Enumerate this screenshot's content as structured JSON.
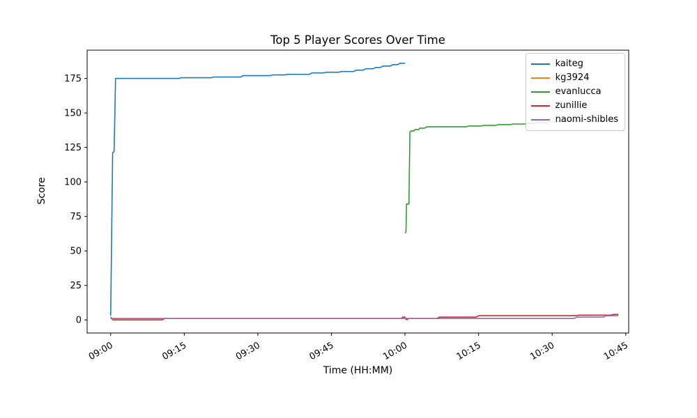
{
  "figure": {
    "title": "Top 5 Player Scores Over Time",
    "xlabel": "Time (HH:MM)",
    "ylabel": "Score"
  },
  "chart_data": {
    "type": "line",
    "title": "Top 5 Player Scores Over Time",
    "xlabel": "Time (HH:MM)",
    "ylabel": "Score",
    "grid": false,
    "legend_position": "upper right",
    "x_unit": "minutes after 09:00",
    "xlim": [
      -4.8,
      105.6
    ],
    "ylim": [
      -9.5,
      195.5
    ],
    "x_ticks": [
      {
        "minute": 0,
        "label": "09:00"
      },
      {
        "minute": 15,
        "label": "09:15"
      },
      {
        "minute": 30,
        "label": "09:30"
      },
      {
        "minute": 45,
        "label": "09:45"
      },
      {
        "minute": 60,
        "label": "10:00"
      },
      {
        "minute": 75,
        "label": "10:15"
      },
      {
        "minute": 90,
        "label": "10:30"
      },
      {
        "minute": 105,
        "label": "10:45"
      }
    ],
    "y_ticks": [
      0,
      25,
      50,
      75,
      100,
      125,
      150,
      175
    ],
    "series": [
      {
        "name": "kaiteg",
        "color": "#1f77b4",
        "points": [
          [
            0,
            3
          ],
          [
            0.4,
            121
          ],
          [
            0.7,
            122
          ],
          [
            1.0,
            175
          ],
          [
            14,
            175
          ],
          [
            14.3,
            175.5
          ],
          [
            20.5,
            175.5
          ],
          [
            21,
            176
          ],
          [
            26.5,
            176
          ],
          [
            27,
            177
          ],
          [
            32.5,
            177
          ],
          [
            33,
            177.5
          ],
          [
            35.5,
            177.5
          ],
          [
            36,
            178
          ],
          [
            40.5,
            178
          ],
          [
            41,
            179
          ],
          [
            43.5,
            179
          ],
          [
            44,
            179.5
          ],
          [
            46.5,
            179.5
          ],
          [
            47,
            180
          ],
          [
            49.5,
            180
          ],
          [
            50,
            181
          ],
          [
            51.5,
            181
          ],
          [
            52,
            182
          ],
          [
            53.5,
            182
          ],
          [
            54,
            183
          ],
          [
            55,
            183
          ],
          [
            55.5,
            184
          ],
          [
            57,
            184
          ],
          [
            57.5,
            185
          ],
          [
            58.5,
            185
          ],
          [
            59,
            186
          ],
          [
            60,
            186
          ]
        ]
      },
      {
        "name": "kg3924",
        "color": "#ff7f0e",
        "points": [
          [
            0,
            1
          ],
          [
            94,
            1
          ]
        ]
      },
      {
        "name": "evanlucca",
        "color": "#2ca02c",
        "points": [
          [
            60,
            63
          ],
          [
            60.2,
            64
          ],
          [
            60.3,
            84
          ],
          [
            60.8,
            84
          ],
          [
            61,
            136
          ],
          [
            61.2,
            137
          ],
          [
            61.8,
            137
          ],
          [
            62,
            138
          ],
          [
            62.8,
            138
          ],
          [
            63,
            139
          ],
          [
            64,
            139
          ],
          [
            64.5,
            140
          ],
          [
            72.5,
            140
          ],
          [
            73,
            140.5
          ],
          [
            75.5,
            140.5
          ],
          [
            76,
            141
          ],
          [
            78.5,
            141
          ],
          [
            79,
            141.5
          ],
          [
            81.5,
            141.5
          ],
          [
            82,
            142
          ],
          [
            84.5,
            142
          ],
          [
            85,
            142.5
          ],
          [
            86.5,
            142.5
          ],
          [
            87,
            143
          ],
          [
            89,
            143
          ],
          [
            89.5,
            143.5
          ],
          [
            91.5,
            143.5
          ],
          [
            92,
            144
          ],
          [
            94.5,
            144
          ],
          [
            95,
            144.5
          ],
          [
            103,
            144.5
          ],
          [
            103.5,
            145
          ]
        ]
      },
      {
        "name": "zunillie",
        "color": "#d62728",
        "points": [
          [
            0,
            2
          ],
          [
            0.5,
            0
          ],
          [
            10.5,
            0
          ],
          [
            11,
            1
          ],
          [
            59.3,
            1
          ],
          [
            59.5,
            2
          ],
          [
            60,
            2
          ],
          [
            60.2,
            0.3
          ],
          [
            60.5,
            0.3
          ],
          [
            60.7,
            1
          ],
          [
            66.5,
            1
          ],
          [
            67,
            2
          ],
          [
            74.5,
            2
          ],
          [
            75,
            3
          ],
          [
            95,
            3
          ],
          [
            95.5,
            3.5
          ],
          [
            102,
            3.5
          ],
          [
            102.5,
            4
          ],
          [
            103.5,
            4
          ]
        ]
      },
      {
        "name": "naomi-shibles",
        "color": "#9467bd",
        "points": [
          [
            0,
            1
          ],
          [
            94.5,
            1
          ],
          [
            95,
            2
          ],
          [
            100.5,
            2
          ],
          [
            101,
            3
          ],
          [
            103.5,
            3
          ]
        ]
      }
    ]
  }
}
